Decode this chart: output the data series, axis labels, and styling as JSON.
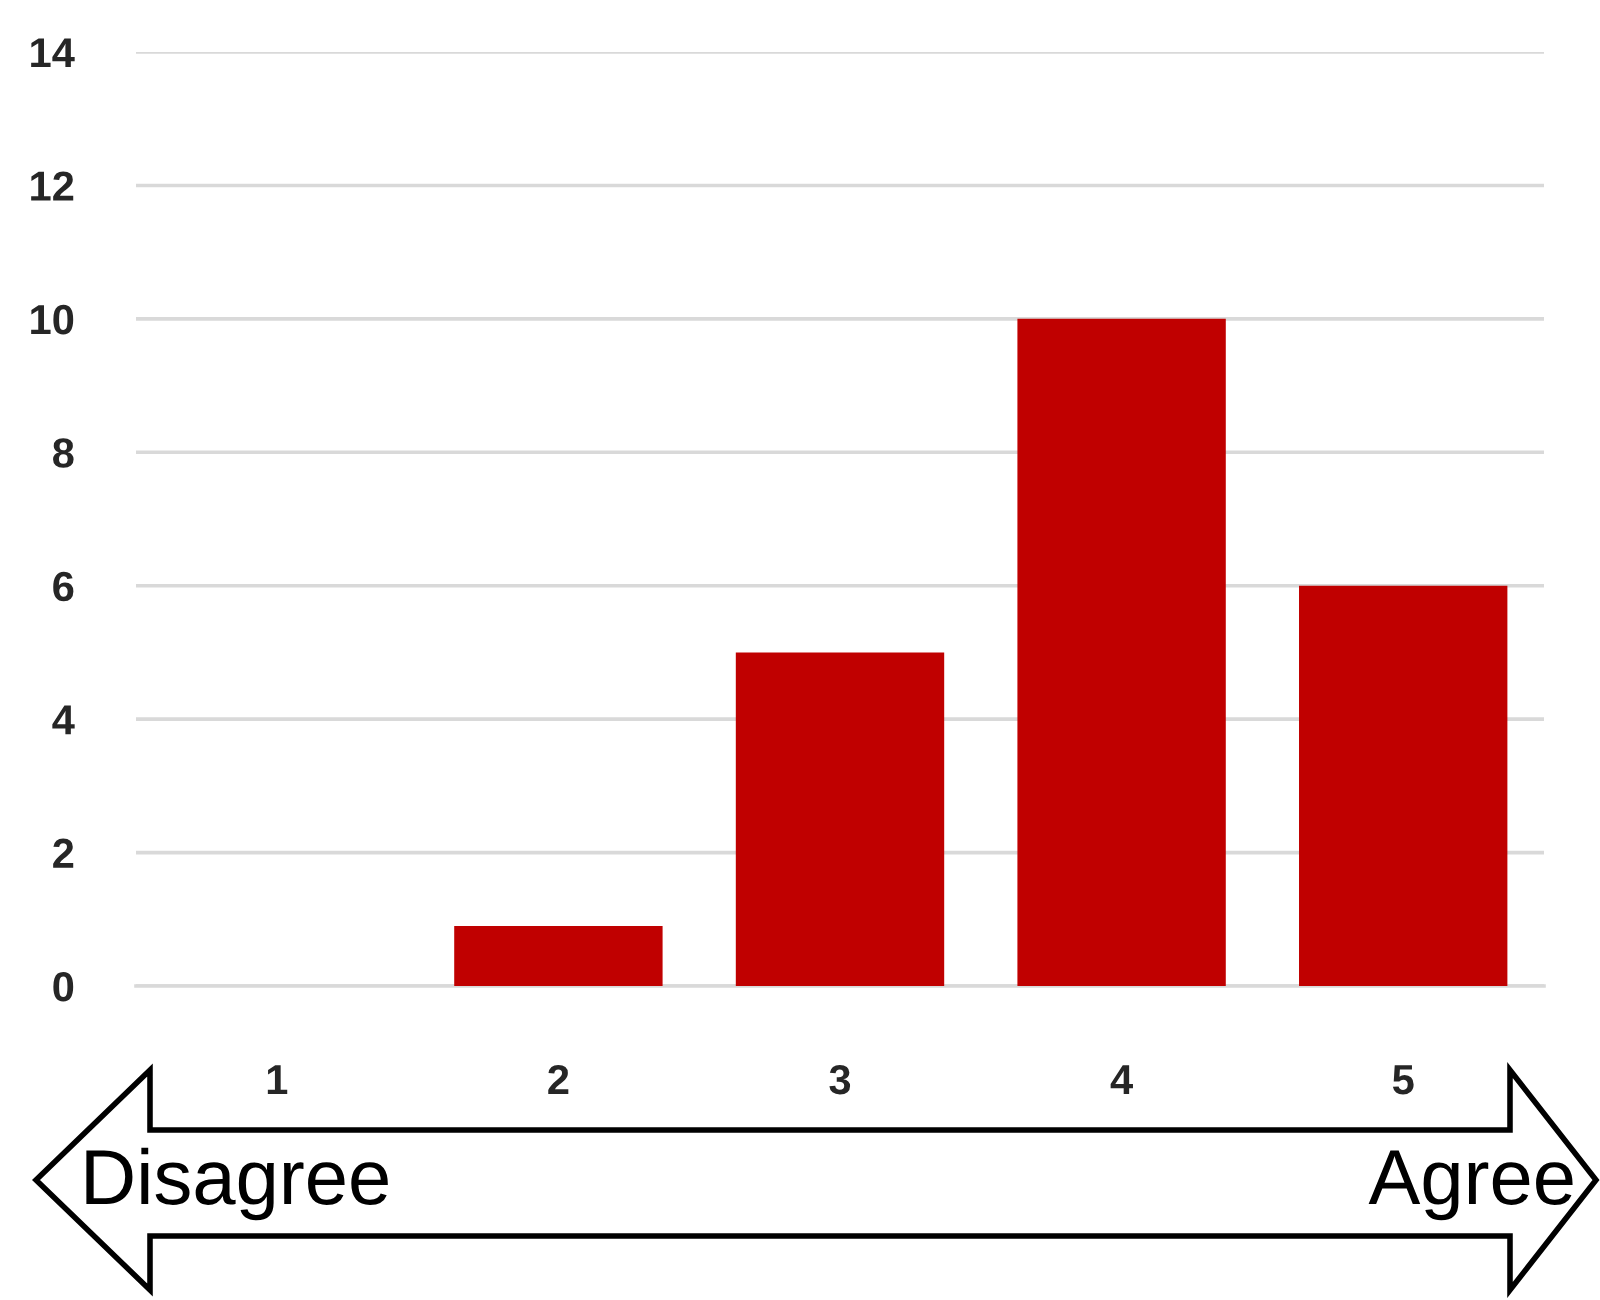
{
  "chart_data": {
    "type": "bar",
    "categories": [
      "1",
      "2",
      "3",
      "4",
      "5"
    ],
    "values": [
      0,
      0.9,
      5,
      10,
      6
    ],
    "color": "#c00000",
    "ylim": [
      0,
      14
    ],
    "yticks": [
      0,
      2,
      4,
      6,
      8,
      10,
      12,
      14
    ],
    "grid": "y",
    "annotations": [
      "Disagree",
      "Agree"
    ]
  }
}
